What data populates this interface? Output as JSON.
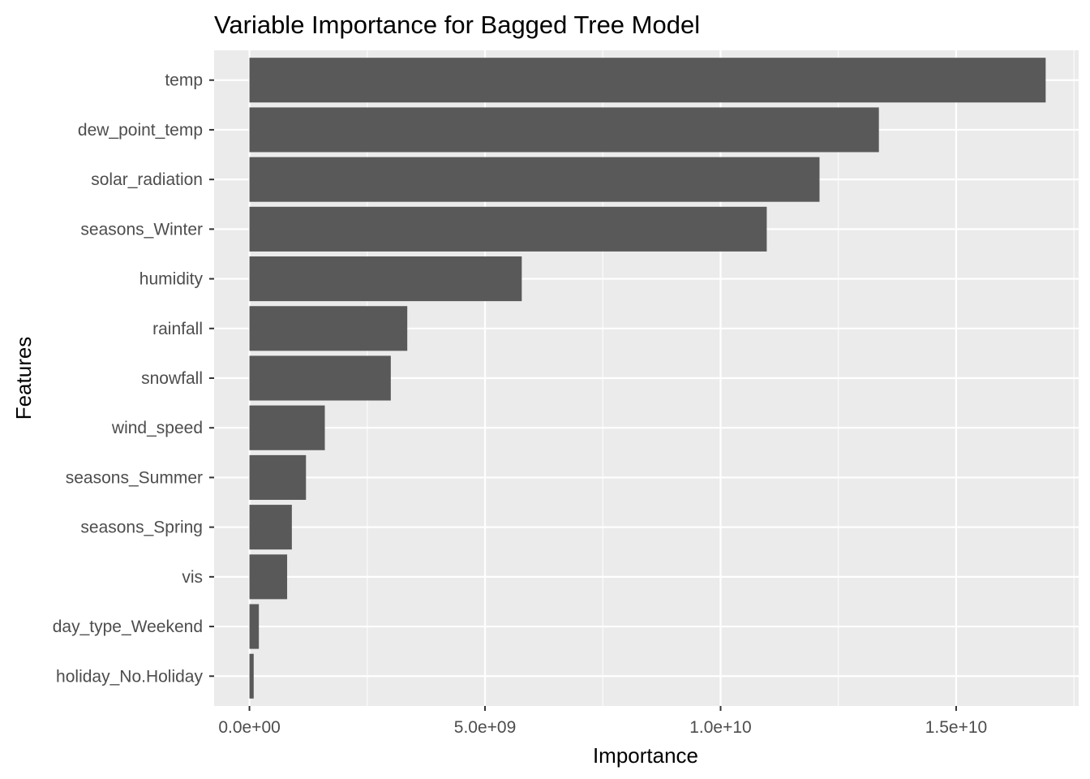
{
  "chart_data": {
    "type": "bar",
    "orientation": "horizontal",
    "title": "Variable Importance for Bagged Tree Model",
    "xlabel": "Importance",
    "ylabel": "Features",
    "categories": [
      "holiday_No.Holiday",
      "day_type_Weekend",
      "vis",
      "seasons_Spring",
      "seasons_Summer",
      "wind_speed",
      "snowfall",
      "rainfall",
      "humidity",
      "seasons_Winter",
      "solar_radiation",
      "dew_point_temp",
      "temp"
    ],
    "values": [
      90000000,
      200000000,
      800000000,
      900000000,
      1200000000,
      1600000000,
      3000000000,
      3350000000,
      5780000000,
      10980000000,
      12100000000,
      13360000000,
      16900000000
    ],
    "xlim": [
      -750000000,
      17600000000
    ],
    "xticks": [
      0,
      5000000000,
      10000000000,
      15000000000
    ],
    "xtick_labels": [
      "0.0e+00",
      "5.0e+09",
      "1.0e+10",
      "1.5e+10"
    ],
    "grid": true,
    "colors": {
      "panel_background": "#ebebeb",
      "grid": "#ffffff",
      "bar": "#595959",
      "tick_text": "#4d4d4d",
      "tick_mark": "#333333"
    }
  }
}
